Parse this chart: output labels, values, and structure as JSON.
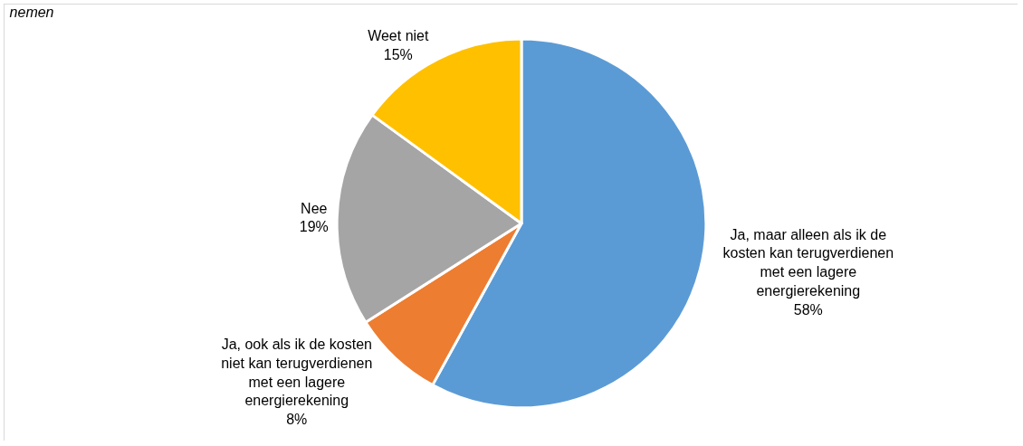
{
  "chart_data": {
    "type": "pie",
    "title": "nemen",
    "categories": [
      "Ja, maar alleen als ik de kosten kan terugverdienen met een lagere energierekening",
      "Ja, ook als ik de kosten niet kan terugverdienen met een lagere energierekening",
      "Nee",
      "Weet niet"
    ],
    "values": [
      58,
      8,
      19,
      15
    ],
    "colors": [
      "#5b9bd5",
      "#ed7d31",
      "#a5a5a5",
      "#ffc000"
    ],
    "value_labels": [
      "58%",
      "8%",
      "19%",
      "15%"
    ],
    "legend": false
  }
}
